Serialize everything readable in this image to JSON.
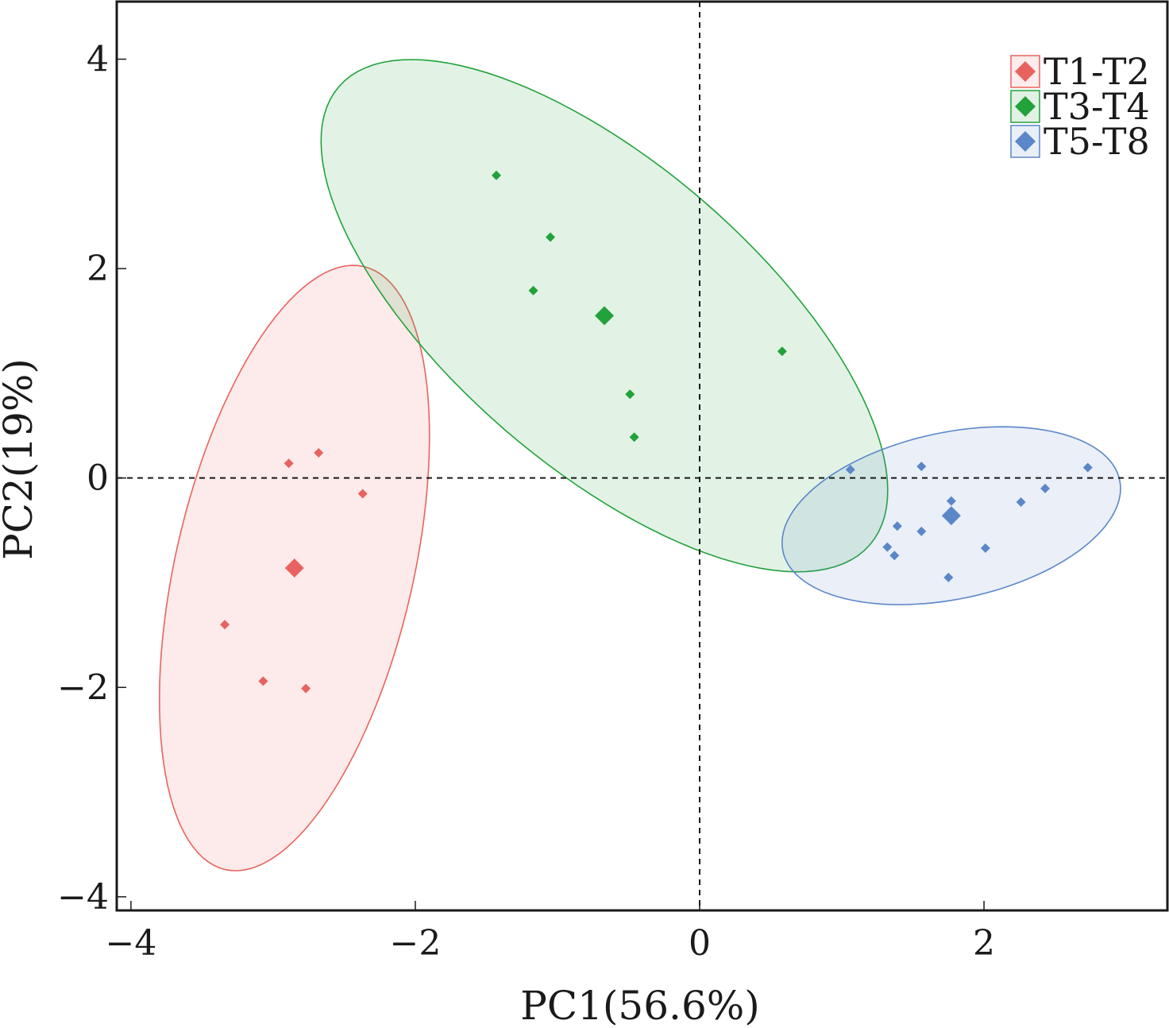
{
  "chart_data": {
    "type": "scatter",
    "title": "",
    "xlabel": "PC1(56.6%)",
    "ylabel": "PC2(19%)",
    "xlim": [
      -4.1,
      3.29
    ],
    "ylim": [
      -4.13,
      4.55
    ],
    "x_ticks": [
      -4,
      -2,
      0,
      2
    ],
    "x_tick_labels": [
      "−4",
      "−2",
      "0",
      "2"
    ],
    "y_ticks": [
      -4,
      -2,
      0,
      2,
      4
    ],
    "y_tick_labels": [
      "−4",
      "−2",
      "0",
      "2",
      "4"
    ],
    "grid": false,
    "reference_lines": {
      "x": 0,
      "y": 0,
      "style": "dashed"
    },
    "legend_position": "top-right",
    "series": [
      {
        "name": "T1-T2",
        "color": "#e8635f",
        "fill": "#fdeceb",
        "points": [
          [
            -2.89,
            0.14
          ],
          [
            -2.68,
            0.24
          ],
          [
            -2.37,
            -0.15
          ],
          [
            -3.34,
            -1.4
          ],
          [
            -3.07,
            -1.94
          ],
          [
            -2.77,
            -2.01
          ]
        ],
        "centroid": [
          -2.85,
          -0.86
        ],
        "ellipse": {
          "center": [
            -2.85,
            -0.86
          ],
          "major_half_axis": [
            0.486,
            2.88
          ],
          "minor_half_axis": [
            0.816,
            -0.25
          ]
        }
      },
      {
        "name": "T3-T4",
        "color": "#22a23a",
        "fill": "#e1f1e4",
        "points": [
          [
            -1.43,
            2.89
          ],
          [
            -1.05,
            2.3
          ],
          [
            -1.17,
            1.79
          ],
          [
            -0.49,
            0.8
          ],
          [
            -0.46,
            0.39
          ],
          [
            0.58,
            1.21
          ]
        ],
        "centroid": [
          -0.67,
          1.55
        ],
        "ellipse": {
          "center": [
            -0.67,
            1.55
          ],
          "major_half_axis": [
            1.866,
            -2.19
          ],
          "minor_half_axis": [
            -0.7,
            -1.09
          ]
        }
      },
      {
        "name": "T5-T8",
        "color": "#5b87c9",
        "fill": "#e9eff8",
        "points": [
          [
            1.06,
            0.08
          ],
          [
            1.56,
            0.11
          ],
          [
            2.73,
            0.1
          ],
          [
            2.43,
            -0.1
          ],
          [
            2.26,
            -0.23
          ],
          [
            1.77,
            -0.22
          ],
          [
            1.39,
            -0.46
          ],
          [
            1.56,
            -0.51
          ],
          [
            1.32,
            -0.66
          ],
          [
            1.37,
            -0.74
          ],
          [
            2.01,
            -0.67
          ],
          [
            1.75,
            -0.95
          ]
        ],
        "centroid": [
          1.77,
          -0.36
        ],
        "ellipse": {
          "center": [
            1.77,
            -0.36
          ],
          "major_half_axis": [
            1.184,
            0.341
          ],
          "minor_half_axis": [
            0.122,
            -0.778
          ]
        }
      }
    ]
  }
}
